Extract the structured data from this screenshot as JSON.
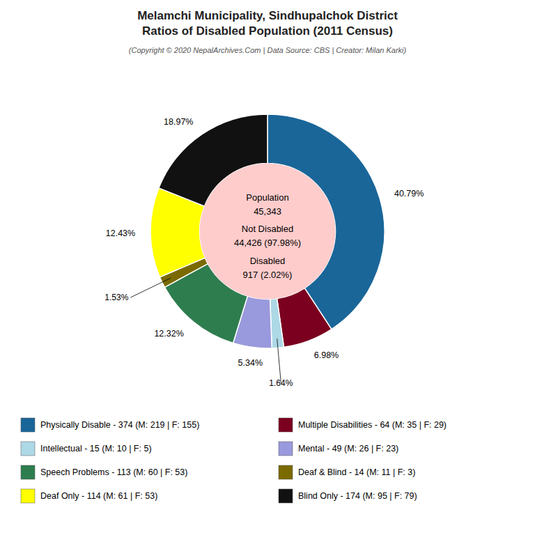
{
  "chart_data": {
    "type": "pie",
    "title": [
      "Melamchi Municipality, Sindhupalchok District",
      "Ratios of Disabled Population (2011 Census)"
    ],
    "subtitle": "(Copyright © 2020 NepalArchives.Com | Data Source: CBS | Creator: Milan Karki)",
    "categories": [
      "Physically Disable - 374 (M: 219 | F: 155)",
      "Multiple Disabilities - 64 (M: 35 | F: 29)",
      "Intellectual - 15 (M: 10 | F: 5)",
      "Mental - 49 (M: 26 | F: 23)",
      "Speech Problems - 113 (M: 60 | F: 53)",
      "Deaf & Blind - 14 (M: 11 | F: 3)",
      "Deaf Only - 114 (M: 61 | F: 53)",
      "Blind Only - 174 (M: 95 | F: 79)"
    ],
    "values": [
      40.79,
      6.98,
      1.64,
      5.34,
      12.32,
      1.53,
      12.43,
      18.97
    ],
    "value_labels": [
      "40.79%",
      "6.98%",
      "1.64%",
      "5.34%",
      "12.32%",
      "1.53%",
      "12.43%",
      "18.97%"
    ],
    "data_labels": true,
    "colors": [
      "#1a6699",
      "#7b0020",
      "#add8e6",
      "#9999dd",
      "#2e7d4f",
      "#7a6a00",
      "#ffff00",
      "#111111"
    ],
    "annotations": [
      "Population",
      "45,343",
      "Not Disabled",
      "44,426 (97.98%)",
      "Disabled",
      "917 (2.02%)"
    ],
    "legend": "bottom"
  }
}
